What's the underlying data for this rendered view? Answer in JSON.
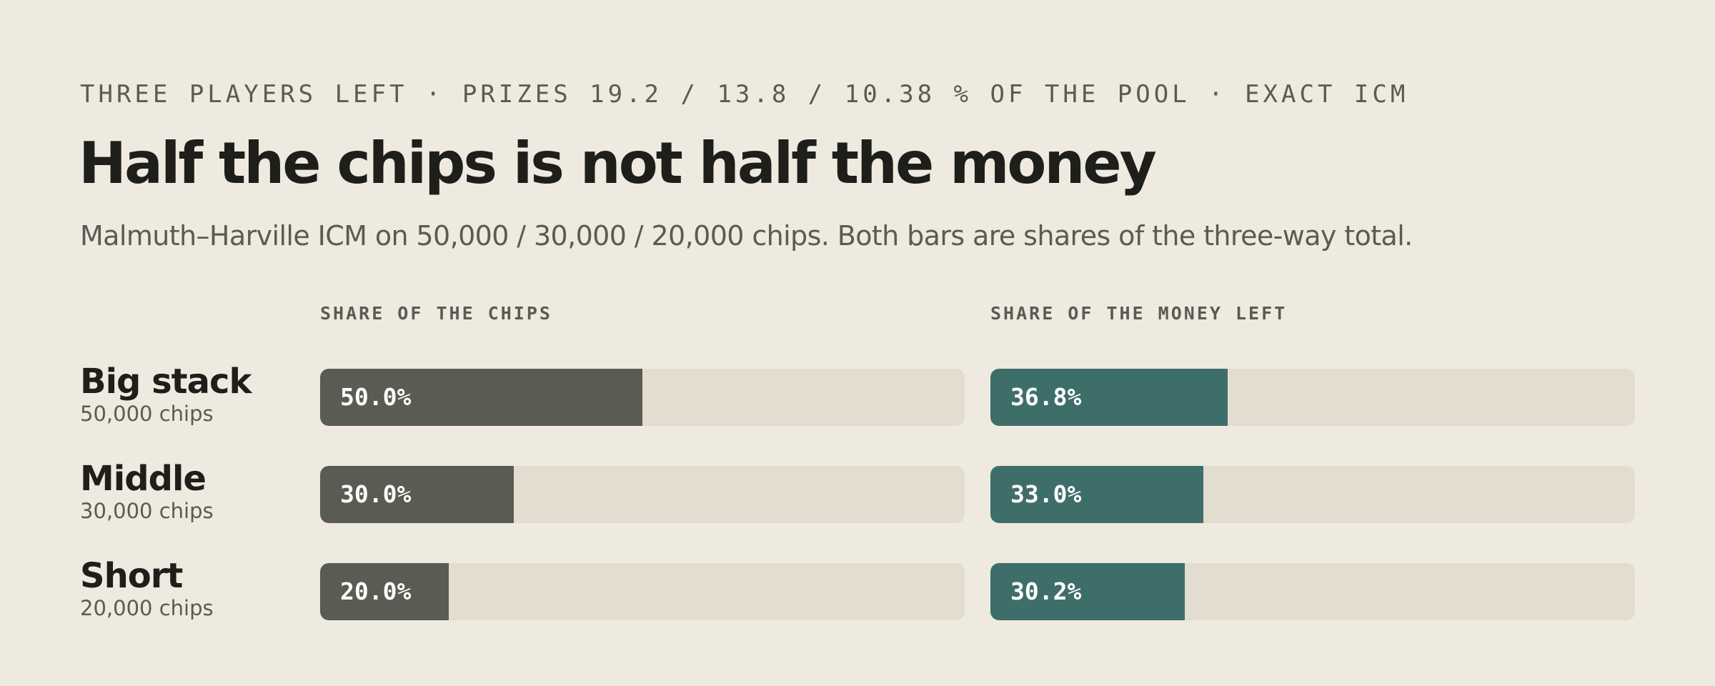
{
  "header": {
    "kicker": "THREE PLAYERS LEFT · PRIZES 19.2 / 13.8 / 10.38 % OF THE POOL · EXACT ICM",
    "title": "Half the chips is not half the money",
    "subtitle": "Malmuth–Harville ICM on 50,000 / 30,000 / 20,000 chips. Both bars are shares of the three-way total."
  },
  "colors": {
    "background": "#EEEAE0",
    "chips_bar": "#5A5B52",
    "money_bar": "#3E6E6A",
    "track": "#E2DDCE"
  },
  "chart_data": {
    "type": "bar",
    "orientation": "horizontal",
    "categories": [
      "Big stack",
      "Middle",
      "Short"
    ],
    "category_sublabels": [
      "50,000 chips",
      "30,000 chips",
      "20,000 chips"
    ],
    "panels": [
      {
        "title": "SHARE OF THE CHIPS",
        "values": [
          50.0,
          30.0,
          20.0
        ],
        "labels": [
          "50.0%",
          "30.0%",
          "20.0%"
        ],
        "color": "#5A5B52"
      },
      {
        "title": "SHARE OF THE MONEY LEFT",
        "values": [
          36.8,
          33.0,
          30.2
        ],
        "labels": [
          "36.8%",
          "33.0%",
          "30.2%"
        ],
        "color": "#3E6E6A"
      }
    ],
    "xlim": [
      0,
      100
    ]
  }
}
